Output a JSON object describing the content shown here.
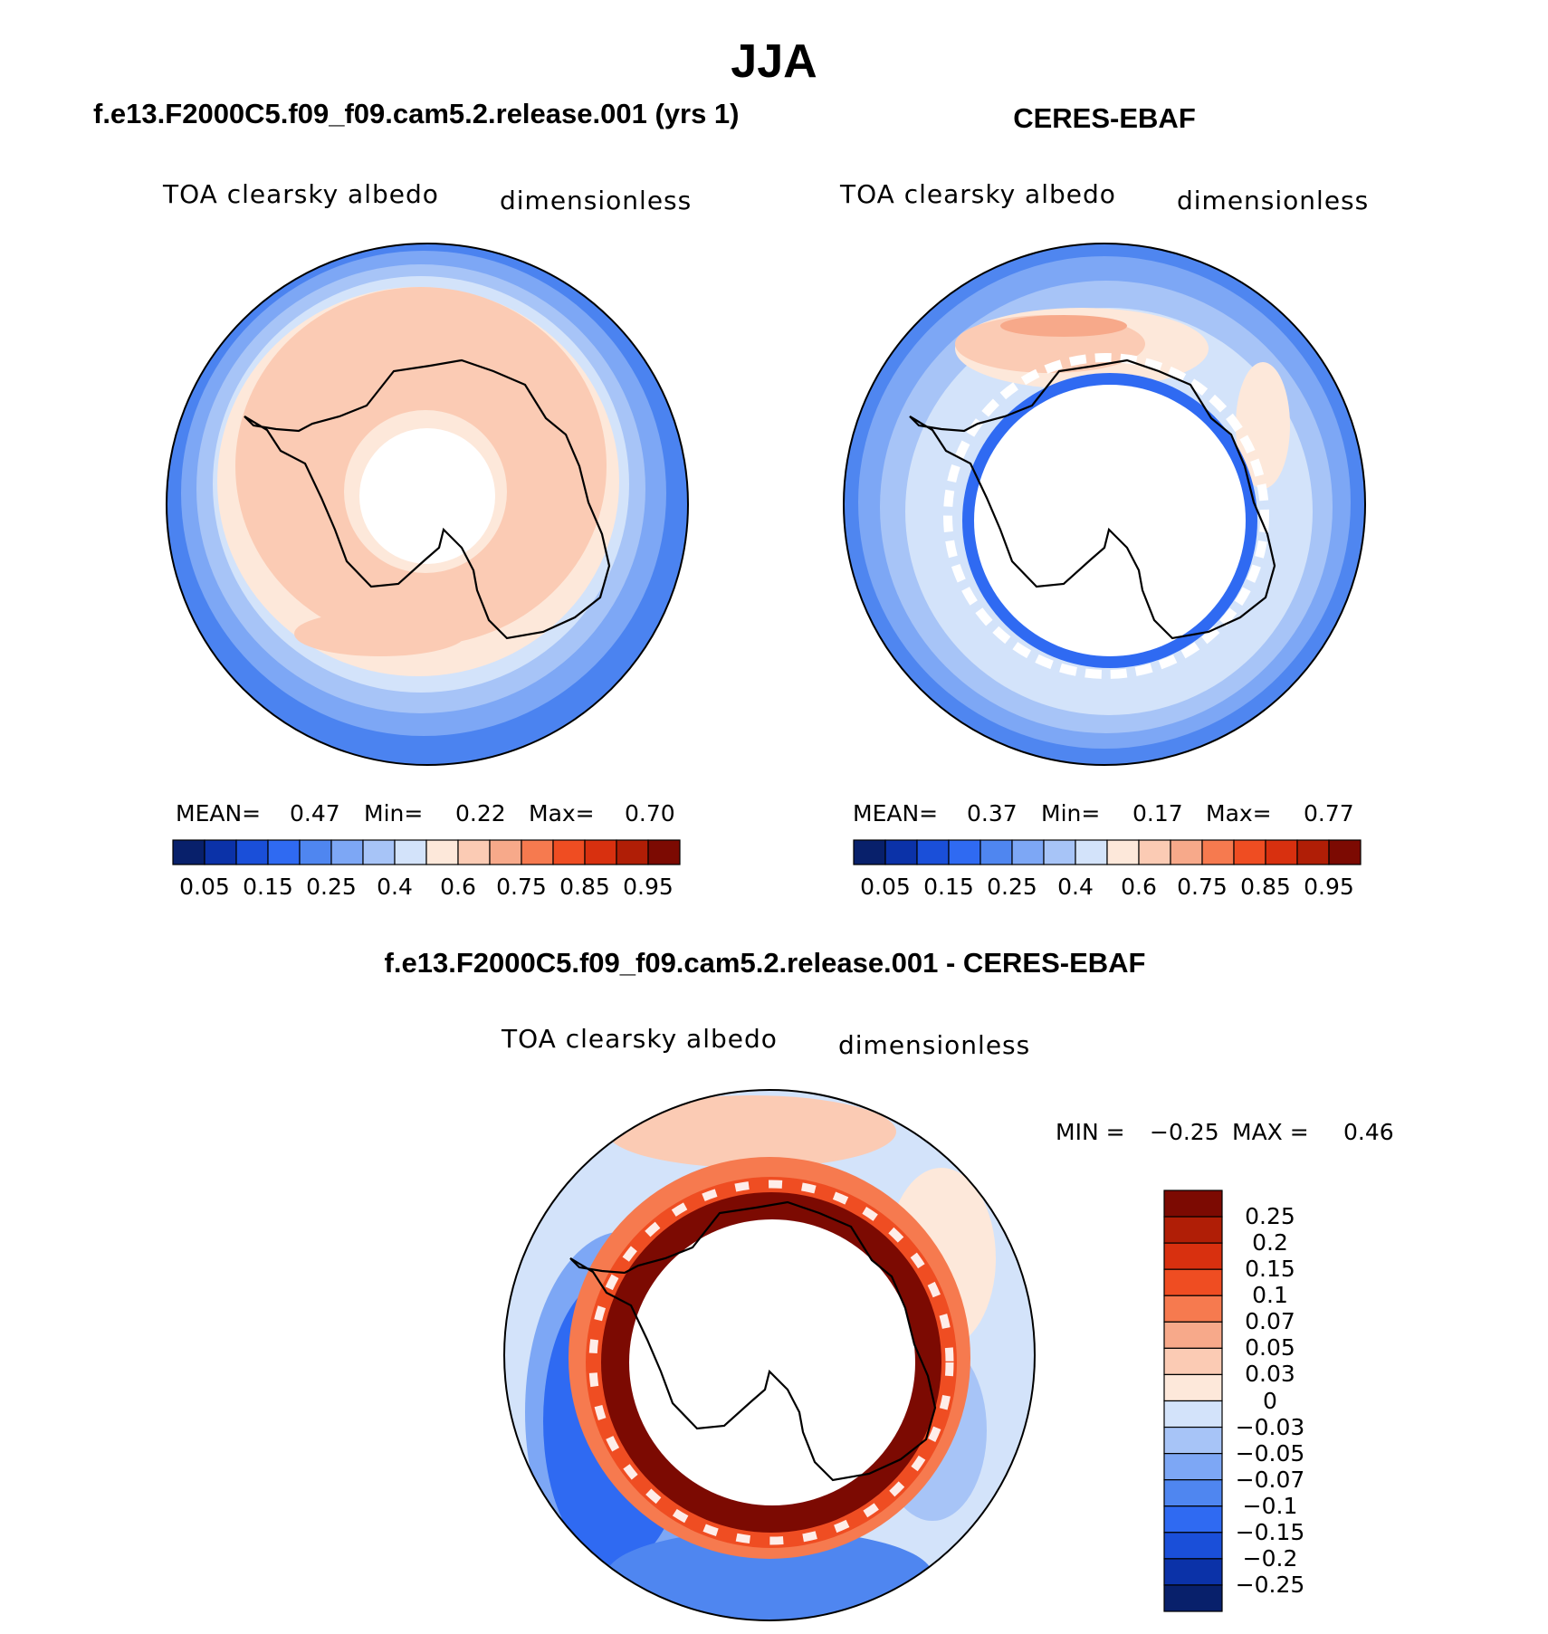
{
  "main_title": "JJA",
  "panels": [
    {
      "title": "f.e13.F2000C5.f09_f09.cam5.2.release.001 (yrs 1)",
      "variable": "TOA clearsky albedo",
      "units": "dimensionless",
      "stats": {
        "mean_label": "MEAN=",
        "mean": "0.47",
        "min_label": "Min=",
        "min": "0.22",
        "max_label": "Max=",
        "max": "0.70"
      }
    },
    {
      "title": "CERES-EBAF",
      "variable": "TOA clearsky albedo",
      "units": "dimensionless",
      "stats": {
        "mean_label": "MEAN=",
        "mean": "0.37",
        "min_label": "Min=",
        "min": "0.17",
        "max_label": "Max=",
        "max": "0.77"
      }
    },
    {
      "title": "f.e13.F2000C5.f09_f09.cam5.2.release.001 - CERES-EBAF",
      "variable": "TOA clearsky albedo",
      "units": "dimensionless",
      "minmax": {
        "min_label": "MIN =",
        "min": "−0.25",
        "max_label": "MAX =",
        "max": "0.46"
      }
    }
  ],
  "colorbars": {
    "absolute": {
      "colors": [
        "#08206b",
        "#0b32a8",
        "#1a4fd9",
        "#2f6af2",
        "#4f86f0",
        "#7da7f5",
        "#a7c4f7",
        "#d3e3fa",
        "#fde8da",
        "#fbcbb4",
        "#f7a98a",
        "#f67a4f",
        "#ef4d22",
        "#d8300f",
        "#b01e06",
        "#7c0a02"
      ],
      "tick_labels": [
        "0.05",
        "0.15",
        "0.25",
        "0.4",
        "0.6",
        "0.75",
        "0.85",
        "0.95"
      ]
    },
    "difference": {
      "colors": [
        "#7c0a02",
        "#b01e06",
        "#d8300f",
        "#ef4d22",
        "#f67a4f",
        "#f7a98a",
        "#fbcbb4",
        "#fde8da",
        "#d3e3fa",
        "#a7c4f7",
        "#7da7f5",
        "#4f86f0",
        "#2f6af2",
        "#1a4fd9",
        "#0b32a8",
        "#08206b"
      ],
      "tick_labels": [
        "0.25",
        "0.2",
        "0.15",
        "0.1",
        "0.07",
        "0.05",
        "0.03",
        "0",
        "−0.03",
        "−0.05",
        "−0.07",
        "−0.1",
        "−0.15",
        "−0.2",
        "−0.25"
      ]
    }
  }
}
